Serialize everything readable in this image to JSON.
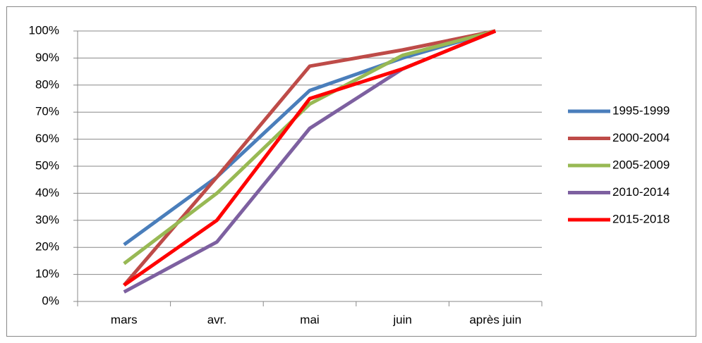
{
  "chart_data": {
    "type": "line",
    "categories": [
      "mars",
      "avr.",
      "mai",
      "juin",
      "après juin"
    ],
    "series": [
      {
        "name": "1995-1999",
        "color": "#4a7ebb",
        "values": [
          21,
          46,
          78,
          90,
          100
        ]
      },
      {
        "name": "2000-2004",
        "color": "#be4b48",
        "values": [
          6,
          46,
          87,
          93,
          100
        ]
      },
      {
        "name": "2005-2009",
        "color": "#98b954",
        "values": [
          14,
          40,
          73,
          91,
          100
        ]
      },
      {
        "name": "2010-2014",
        "color": "#7d60a0",
        "values": [
          3.5,
          22,
          64,
          86,
          100
        ]
      },
      {
        "name": "2015-2018",
        "color": "#ff0000",
        "values": [
          6,
          30,
          75,
          86,
          100
        ]
      }
    ],
    "ylim": [
      0,
      100
    ],
    "yticks": [
      {
        "value": 0,
        "label": "0%"
      },
      {
        "value": 10,
        "label": "10%"
      },
      {
        "value": 20,
        "label": "20%"
      },
      {
        "value": 30,
        "label": "30%"
      },
      {
        "value": 40,
        "label": "40%"
      },
      {
        "value": 50,
        "label": "50%"
      },
      {
        "value": 60,
        "label": "60%"
      },
      {
        "value": 70,
        "label": "70%"
      },
      {
        "value": 80,
        "label": "80%"
      },
      {
        "value": 90,
        "label": "90%"
      },
      {
        "value": 100,
        "label": "100%"
      }
    ],
    "grid": true,
    "legend": "right"
  }
}
